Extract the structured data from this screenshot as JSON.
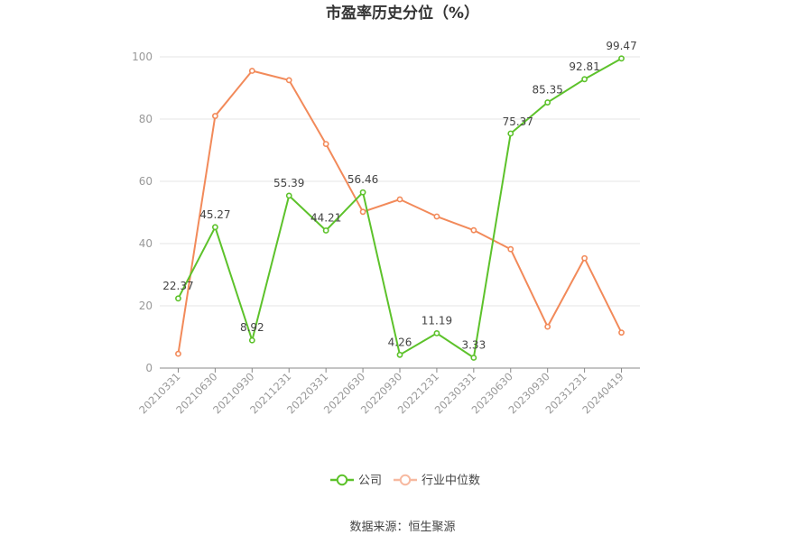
{
  "chart_data": {
    "type": "line",
    "title": "市盈率历史分位（%）",
    "categories": [
      "20210331",
      "20210630",
      "20210930",
      "20211231",
      "20220331",
      "20220630",
      "20220930",
      "20221231",
      "20230331",
      "20230630",
      "20230930",
      "20231231",
      "20240419"
    ],
    "ylim": [
      0,
      100
    ],
    "yticks": [
      0,
      20,
      40,
      60,
      80,
      100
    ],
    "grid": true,
    "legend_position": "bottom",
    "series": [
      {
        "name": "公司",
        "color": "#5dc22b",
        "values": [
          22.37,
          45.27,
          8.92,
          55.39,
          44.21,
          56.46,
          4.26,
          11.19,
          3.33,
          75.37,
          85.35,
          92.81,
          99.47
        ],
        "labels": [
          "22.37",
          "45.27",
          "8.92",
          "55.39",
          "44.21",
          "56.46",
          "4.26",
          "11.19",
          "3.33",
          "75.37",
          "85.35",
          "92.81",
          "99.47"
        ],
        "label_positions": [
          "above",
          "above",
          "above",
          "above",
          "above",
          "above",
          "above",
          "above",
          "above",
          "left",
          "above",
          "above",
          "above"
        ]
      },
      {
        "name": "行业中位数",
        "color": "#f28a5a",
        "legend_color": "#f7b9a0",
        "values": [
          4.6,
          81.0,
          95.5,
          92.5,
          72.0,
          50.2,
          54.2,
          48.7,
          44.3,
          38.2,
          13.3,
          35.3,
          11.4
        ]
      }
    ]
  },
  "source_text": "数据来源：恒生聚源"
}
